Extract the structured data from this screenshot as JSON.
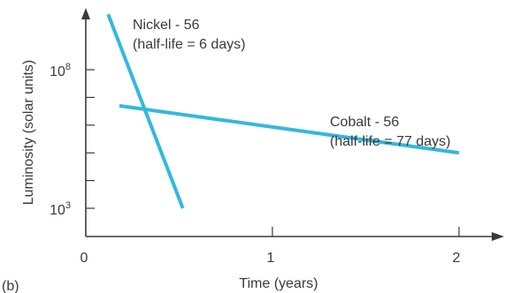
{
  "chart_data": {
    "type": "line",
    "panel_label": "(b)",
    "xlabel": "Time (years)",
    "ylabel": "Luminosity (solar units)",
    "x_ticks": [
      {
        "value": 0,
        "label": "0"
      },
      {
        "value": 1,
        "label": "1"
      },
      {
        "value": 2,
        "label": "2"
      }
    ],
    "y_scale": "log",
    "y_ticks": [
      {
        "value": 1000,
        "label": "10",
        "exp": "3"
      },
      {
        "value": 100000000,
        "label": "10",
        "exp": "8"
      }
    ],
    "xlim": [
      0,
      2.2
    ],
    "ylim": [
      100,
      100000000000
    ],
    "series": [
      {
        "name_line1": "Nickel - 56",
        "name_line2": "(half-life = 6 days)",
        "color": "#33b8de",
        "points": [
          [
            0.12,
            10000000000
          ],
          [
            0.52,
            1000
          ]
        ]
      },
      {
        "name_line1": "Cobalt - 56",
        "name_line2": "(half-life = 77 days)",
        "color": "#33b8de",
        "points": [
          [
            0.18,
            5000000
          ],
          [
            2.0,
            100000
          ]
        ]
      }
    ],
    "grid": false,
    "legend": "inline labels"
  }
}
